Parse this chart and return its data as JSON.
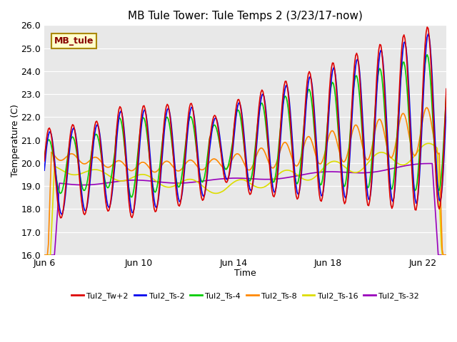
{
  "title": "MB Tule Tower: Tule Temps 2 (3/23/17-now)",
  "xlabel": "Time",
  "ylabel": "Temperature (C)",
  "ylim": [
    16.0,
    26.0
  ],
  "yticks": [
    16.0,
    17.0,
    18.0,
    19.0,
    20.0,
    21.0,
    22.0,
    23.0,
    24.0,
    25.0,
    26.0
  ],
  "xtick_labels": [
    "Jun 6",
    "Jun 10",
    "Jun 14",
    "Jun 18",
    "Jun 22"
  ],
  "xtick_positions": [
    0,
    4,
    8,
    12,
    16
  ],
  "xlim": [
    0,
    17
  ],
  "bg_color": "#e8e8e8",
  "fig_color": "#ffffff",
  "series_colors": [
    "#dd0000",
    "#0000ee",
    "#00cc00",
    "#ff8800",
    "#dddd00",
    "#9900bb"
  ],
  "series_labels": [
    "Tul2_Tw+2",
    "Tul2_Ts-2",
    "Tul2_Ts-4",
    "Tul2_Ts-8",
    "Tul2_Ts-16",
    "Tul2_Ts-32"
  ],
  "annotation_text": "MB_tule",
  "annotation_bg": "#ffffcc",
  "annotation_border": "#aa8800",
  "annotation_color": "#880000",
  "line_width": 1.2,
  "title_fontsize": 11,
  "axis_label_fontsize": 9,
  "tick_fontsize": 9,
  "legend_fontsize": 8
}
